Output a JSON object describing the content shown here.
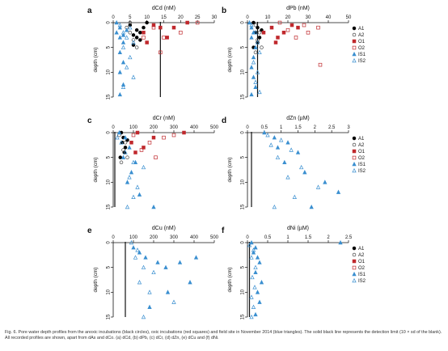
{
  "caption": "Fig. 6. Pore water depth profiles from the anoxic incubations (black circles), oxic incubations (red squares) and field site in November 2014 (blue triangles). The solid black line represents the detection limit (10 × sd of the blank). All recorded profiles are shown, apart from dAs and dCo. (a) dCd, (b) dPb, (c) dCr, (d) dZn, (e) dCu and (f) dNi.",
  "legend": {
    "entries": [
      "A1",
      "A2",
      "O1",
      "O2",
      "IS1",
      "IS2"
    ],
    "colors": {
      "A1": "#000000",
      "A2": "#444444",
      "O1": "#c0282d",
      "O2": "#c0282d",
      "IS1": "#3a8fd0",
      "IS2": "#3a8fd0"
    },
    "markers": {
      "A1": "filled-circle",
      "A2": "open-circle",
      "O1": "filled-square",
      "O2": "open-square",
      "IS1": "filled-triangle",
      "IS2": "open-triangle"
    }
  },
  "chart_data": [
    {
      "type": "scatter",
      "panel": "a",
      "title": "dCd (nM)",
      "ylabel": "depth (cm)",
      "xlim": [
        0,
        30
      ],
      "xticks": [
        0,
        5,
        10,
        15,
        20,
        25,
        30
      ],
      "ylim": [
        0,
        15
      ],
      "yticks": [
        0,
        5,
        10,
        15
      ],
      "yinverted": true,
      "detection_limit": 14,
      "legend": false,
      "series": [
        {
          "name": "A1",
          "points": [
            [
              5,
              0.5
            ],
            [
              7,
              1.5
            ],
            [
              6,
              2.5
            ],
            [
              8,
              3.5
            ],
            [
              6,
              4.5
            ],
            [
              9,
              1
            ],
            [
              10,
              0
            ],
            [
              8,
              2
            ],
            [
              7,
              3
            ]
          ]
        },
        {
          "name": "A2",
          "points": [
            [
              4,
              1
            ],
            [
              5,
              2
            ],
            [
              6,
              3.5
            ],
            [
              7,
              5
            ],
            [
              5,
              0
            ]
          ]
        },
        {
          "name": "O1",
          "points": [
            [
              12,
              0.5
            ],
            [
              14,
              1
            ],
            [
              18,
              1
            ],
            [
              22,
              0
            ],
            [
              9,
              2
            ],
            [
              10,
              4
            ],
            [
              16,
              3
            ]
          ]
        },
        {
          "name": "O2",
          "points": [
            [
              12,
              1
            ],
            [
              15,
              3
            ],
            [
              20,
              2
            ],
            [
              25,
              0
            ],
            [
              14,
              6
            ],
            [
              9,
              3
            ]
          ]
        },
        {
          "name": "IS1",
          "points": [
            [
              1,
              0
            ],
            [
              2,
              1
            ],
            [
              1,
              2
            ],
            [
              2,
              3
            ],
            [
              3,
              4
            ],
            [
              2,
              6
            ],
            [
              3,
              8
            ],
            [
              2,
              10
            ],
            [
              3,
              12.5
            ],
            [
              2,
              14.5
            ],
            [
              4,
              1.5
            ],
            [
              3,
              2.5
            ]
          ]
        },
        {
          "name": "IS2",
          "points": [
            [
              2,
              0.5
            ],
            [
              3,
              2
            ],
            [
              4,
              3
            ],
            [
              3,
              5
            ],
            [
              5,
              7
            ],
            [
              4,
              9
            ],
            [
              6,
              11
            ],
            [
              3,
              13
            ],
            [
              5,
              1
            ],
            [
              6,
              4
            ]
          ]
        }
      ]
    },
    {
      "type": "scatter",
      "panel": "b",
      "title": "dPb (nM)",
      "ylabel": "depth (cm)",
      "xlim": [
        0,
        50
      ],
      "xticks": [
        0,
        10,
        20,
        30,
        40,
        50
      ],
      "ylim": [
        0,
        15
      ],
      "yticks": [
        0,
        5,
        10,
        15
      ],
      "yinverted": true,
      "detection_limit": 5,
      "legend": true,
      "series": [
        {
          "name": "A1",
          "points": [
            [
              3,
              0
            ],
            [
              5,
              1
            ],
            [
              4,
              2
            ],
            [
              6,
              3
            ],
            [
              5,
              4
            ],
            [
              3,
              5
            ],
            [
              7,
              1.5
            ]
          ]
        },
        {
          "name": "A2",
          "points": [
            [
              4,
              0.5
            ],
            [
              6,
              2
            ],
            [
              5,
              3.5
            ],
            [
              7,
              5
            ],
            [
              4,
              6
            ]
          ]
        },
        {
          "name": "O1",
          "points": [
            [
              12,
              1
            ],
            [
              18,
              2
            ],
            [
              22,
              0.5
            ],
            [
              15,
              3
            ],
            [
              25,
              1
            ],
            [
              14,
              4
            ],
            [
              8,
              2
            ]
          ]
        },
        {
          "name": "O2",
          "points": [
            [
              16,
              0
            ],
            [
              20,
              1.5
            ],
            [
              24,
              3
            ],
            [
              30,
              2
            ],
            [
              28,
              0.5
            ],
            [
              35,
              1
            ],
            [
              36,
              8.5
            ]
          ]
        },
        {
          "name": "IS1",
          "points": [
            [
              1,
              0
            ],
            [
              2,
              1
            ],
            [
              3,
              2
            ],
            [
              2,
              3
            ],
            [
              4,
              5
            ],
            [
              3,
              7
            ],
            [
              2,
              9
            ],
            [
              3,
              11
            ],
            [
              4,
              13
            ],
            [
              2,
              14.5
            ]
          ]
        },
        {
          "name": "IS2",
          "points": [
            [
              2,
              0.5
            ],
            [
              4,
              2
            ],
            [
              5,
              4
            ],
            [
              6,
              6
            ],
            [
              3,
              8
            ],
            [
              5,
              10
            ],
            [
              4,
              12
            ],
            [
              6,
              14
            ]
          ]
        }
      ]
    },
    {
      "type": "scatter",
      "panel": "c",
      "title": "dCr (nM)",
      "ylabel": "depth (cm)",
      "xlim": [
        0,
        500
      ],
      "xticks": [
        0,
        100,
        200,
        300,
        400,
        500
      ],
      "ylim": [
        0,
        15
      ],
      "yticks": [
        0,
        5,
        10,
        15
      ],
      "yinverted": true,
      "detection_limit": 8,
      "legend": false,
      "series": [
        {
          "name": "A1",
          "points": [
            [
              40,
              0
            ],
            [
              50,
              1
            ],
            [
              45,
              2
            ],
            [
              60,
              3
            ],
            [
              55,
              4
            ],
            [
              35,
              5
            ],
            [
              70,
              1.5
            ]
          ]
        },
        {
          "name": "A2",
          "points": [
            [
              30,
              0.5
            ],
            [
              60,
              2
            ],
            [
              50,
              3.5
            ],
            [
              70,
              5
            ],
            [
              40,
              6
            ]
          ]
        },
        {
          "name": "O1",
          "points": [
            [
              120,
              0
            ],
            [
              200,
              1
            ],
            [
              350,
              0
            ],
            [
              90,
              2
            ],
            [
              150,
              3
            ],
            [
              110,
              4
            ]
          ]
        },
        {
          "name": "O2",
          "points": [
            [
              100,
              0.5
            ],
            [
              180,
              2
            ],
            [
              250,
              1
            ],
            [
              140,
              3.5
            ],
            [
              210,
              5
            ],
            [
              300,
              0.5
            ]
          ]
        },
        {
          "name": "IS1",
          "points": [
            [
              30,
              0
            ],
            [
              60,
              1
            ],
            [
              80,
              3
            ],
            [
              50,
              5
            ],
            [
              110,
              6
            ],
            [
              90,
              8
            ],
            [
              70,
              10
            ],
            [
              130,
              12.5
            ],
            [
              200,
              15
            ]
          ]
        },
        {
          "name": "IS2",
          "points": [
            [
              20,
              1
            ],
            [
              40,
              2
            ],
            [
              60,
              4
            ],
            [
              100,
              6
            ],
            [
              150,
              7
            ],
            [
              80,
              9
            ],
            [
              120,
              11
            ],
            [
              100,
              13
            ],
            [
              70,
              15
            ]
          ]
        }
      ]
    },
    {
      "type": "scatter",
      "panel": "d",
      "title": "dZn (µM)",
      "ylabel": "depth (cm)",
      "xlim": [
        0,
        3.0
      ],
      "xticks": [
        0.0,
        0.5,
        1.0,
        1.5,
        2.0,
        2.5,
        3.0
      ],
      "ylim": [
        0,
        15
      ],
      "yticks": [
        0,
        5,
        10,
        15
      ],
      "yinverted": true,
      "detection_limit": 0.12,
      "legend": true,
      "series": [
        {
          "name": "IS1",
          "points": [
            [
              0.5,
              0
            ],
            [
              0.8,
              1
            ],
            [
              1.2,
              2
            ],
            [
              0.9,
              3
            ],
            [
              1.5,
              4
            ],
            [
              1.1,
              6
            ],
            [
              1.7,
              8
            ],
            [
              2.3,
              10
            ],
            [
              2.7,
              12
            ],
            [
              1.9,
              15
            ]
          ]
        },
        {
          "name": "IS2",
          "points": [
            [
              0.6,
              0.5
            ],
            [
              1.0,
              1.5
            ],
            [
              0.7,
              2.5
            ],
            [
              1.3,
              3.5
            ],
            [
              0.9,
              5
            ],
            [
              1.6,
              7
            ],
            [
              1.2,
              9
            ],
            [
              2.1,
              11
            ],
            [
              1.4,
              13
            ],
            [
              0.8,
              15
            ]
          ]
        }
      ]
    },
    {
      "type": "scatter",
      "panel": "e",
      "title": "dCu (nM)",
      "ylabel": "depth (cm)",
      "xlim": [
        0,
        500
      ],
      "xticks": [
        0,
        100,
        200,
        300,
        400,
        500
      ],
      "ylim": [
        0,
        15
      ],
      "yticks": [
        0,
        5,
        10,
        15
      ],
      "yinverted": true,
      "detection_limit": 60,
      "legend": false,
      "series": [
        {
          "name": "IS1",
          "points": [
            [
              100,
              1
            ],
            [
              130,
              2
            ],
            [
              160,
              3
            ],
            [
              220,
              4
            ],
            [
              260,
              5
            ],
            [
              330,
              4
            ],
            [
              410,
              3
            ],
            [
              380,
              8
            ],
            [
              270,
              10
            ],
            [
              180,
              13
            ]
          ]
        },
        {
          "name": "IS2",
          "points": [
            [
              90,
              0
            ],
            [
              120,
              1.5
            ],
            [
              110,
              3
            ],
            [
              150,
              5
            ],
            [
              200,
              6
            ],
            [
              130,
              8
            ],
            [
              180,
              10
            ],
            [
              300,
              12
            ],
            [
              150,
              15
            ]
          ]
        }
      ]
    },
    {
      "type": "scatter",
      "panel": "f",
      "title": "dNi (µM)",
      "ylabel": "depth (cm)",
      "xlim": [
        0,
        2.5
      ],
      "xticks": [
        0.0,
        0.5,
        1.0,
        1.5,
        2.0,
        2.5
      ],
      "ylim": [
        0,
        15
      ],
      "yticks": [
        0,
        5,
        10,
        15
      ],
      "yinverted": true,
      "detection_limit": 0.05,
      "legend": true,
      "series": [
        {
          "name": "IS1",
          "points": [
            [
              0.1,
              0
            ],
            [
              0.2,
              1
            ],
            [
              0.15,
              2
            ],
            [
              0.25,
              3
            ],
            [
              0.3,
              4
            ],
            [
              0.2,
              6
            ],
            [
              0.35,
              8
            ],
            [
              0.25,
              10
            ],
            [
              0.3,
              12
            ],
            [
              0.2,
              14.5
            ],
            [
              2.3,
              0
            ]
          ]
        },
        {
          "name": "IS2",
          "points": [
            [
              0.05,
              0.5
            ],
            [
              0.15,
              1.5
            ],
            [
              0.1,
              3
            ],
            [
              0.2,
              5
            ],
            [
              0.12,
              7
            ],
            [
              0.18,
              9
            ],
            [
              0.1,
              11
            ],
            [
              0.15,
              13
            ],
            [
              0.1,
              15
            ]
          ]
        }
      ]
    }
  ]
}
